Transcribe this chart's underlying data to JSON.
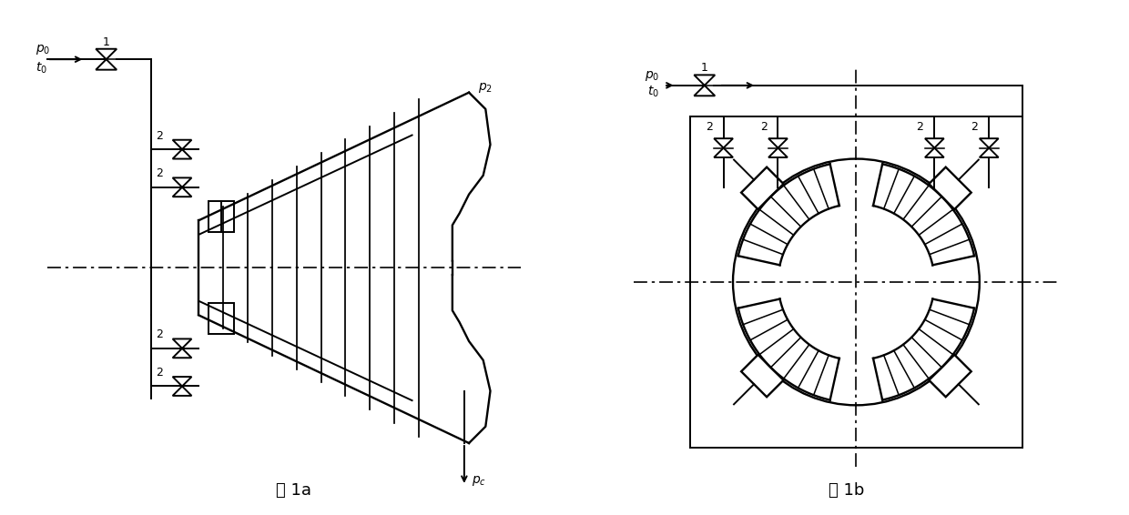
{
  "fig_width": 12.4,
  "fig_height": 5.66,
  "bg_color": "#ffffff",
  "lc": "#000000",
  "lw": 1.4,
  "caption_a": "图 1a",
  "caption_b": "图 1b"
}
